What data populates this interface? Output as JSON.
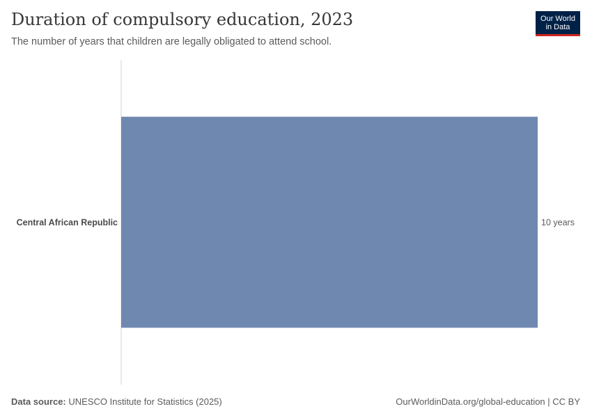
{
  "header": {
    "title": "Duration of compulsory education, 2023",
    "subtitle": "The number of years that children are legally obligated to attend school.",
    "logo_line1": "Our World",
    "logo_line2": "in Data"
  },
  "footer": {
    "source_label": "Data source:",
    "source_text": "UNESCO Institute for Statistics (2025)",
    "url_license": "OurWorldinData.org/global-education | CC BY"
  },
  "colors": {
    "bar": "#6f88b0",
    "axis": "#d0d0d0",
    "logo_bg": "#002147",
    "logo_accent": "#ce261e"
  },
  "chart_data": {
    "type": "bar",
    "orientation": "horizontal",
    "categories": [
      "Central African Republic"
    ],
    "values": [
      10
    ],
    "value_labels": [
      "10 years"
    ],
    "xlim": [
      0,
      10
    ],
    "grid": false
  }
}
